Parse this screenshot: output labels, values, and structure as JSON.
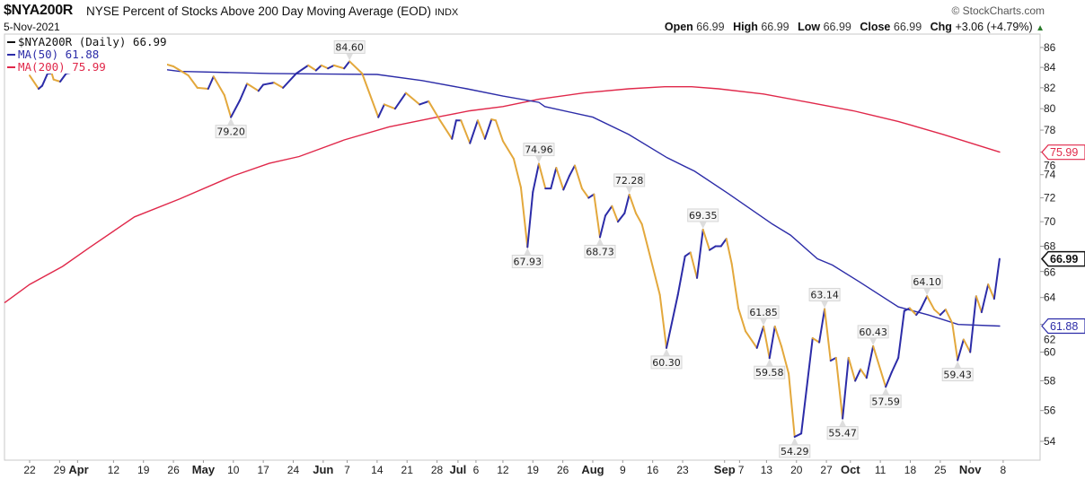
{
  "header": {
    "symbol": "$NYA200R",
    "description": "NYSE Percent of Stocks Above 200 Day Moving Average (EOD)",
    "exchange": "INDX",
    "date": "5-Nov-2021",
    "copyright": "© StockCharts.com",
    "open_label": "Open",
    "open": "66.99",
    "high_label": "High",
    "high": "66.99",
    "low_label": "Low",
    "low": "66.99",
    "close_label": "Close",
    "close": "66.99",
    "chg_label": "Chg",
    "chg": "+3.06 (+4.79%)",
    "chg_arrow": "▲"
  },
  "legend": [
    {
      "label": "$NYA200R (Daily) 66.99",
      "color": "#111111"
    },
    {
      "label": "MA(50) 61.88",
      "color": "#2c2ca8"
    },
    {
      "label": "MA(200) 75.99",
      "color": "#e0284a"
    }
  ],
  "chart_data": {
    "type": "line",
    "title": "$NYA200R NYSE Percent of Stocks Above 200 Day Moving Average (EOD)",
    "x_units": "trading days since 22-Mar-2021",
    "y_scale": "log",
    "ylim": [
      53,
      87
    ],
    "y_ticks": [
      54,
      56,
      58,
      60,
      62,
      64,
      66,
      68,
      70,
      72,
      74,
      76,
      78,
      80,
      82,
      84,
      86
    ],
    "x_ticks": [
      {
        "label": "22",
        "day": 0,
        "bold": false
      },
      {
        "label": "29",
        "day": 5,
        "bold": false
      },
      {
        "label": "Apr",
        "day": 8,
        "bold": true
      },
      {
        "label": "12",
        "day": 14,
        "bold": false
      },
      {
        "label": "19",
        "day": 19,
        "bold": false
      },
      {
        "label": "26",
        "day": 24,
        "bold": false
      },
      {
        "label": "May",
        "day": 29,
        "bold": true
      },
      {
        "label": "10",
        "day": 34,
        "bold": false
      },
      {
        "label": "17",
        "day": 39,
        "bold": false
      },
      {
        "label": "24",
        "day": 44,
        "bold": false
      },
      {
        "label": "Jun",
        "day": 49,
        "bold": true
      },
      {
        "label": "7",
        "day": 53,
        "bold": false
      },
      {
        "label": "14",
        "day": 58,
        "bold": false
      },
      {
        "label": "21",
        "day": 63,
        "bold": false
      },
      {
        "label": "28",
        "day": 68,
        "bold": false
      },
      {
        "label": "Jul",
        "day": 71.5,
        "bold": true
      },
      {
        "label": "6",
        "day": 74.5,
        "bold": false
      },
      {
        "label": "12",
        "day": 79,
        "bold": false
      },
      {
        "label": "19",
        "day": 84,
        "bold": false
      },
      {
        "label": "26",
        "day": 89,
        "bold": false
      },
      {
        "label": "Aug",
        "day": 94,
        "bold": true
      },
      {
        "label": "9",
        "day": 99,
        "bold": false
      },
      {
        "label": "16",
        "day": 104,
        "bold": false
      },
      {
        "label": "23",
        "day": 109,
        "bold": false
      },
      {
        "label": "Sep",
        "day": 116,
        "bold": true
      },
      {
        "label": "7",
        "day": 118.5,
        "bold": false
      },
      {
        "label": "13",
        "day": 123,
        "bold": false
      },
      {
        "label": "20",
        "day": 128,
        "bold": false
      },
      {
        "label": "27",
        "day": 133,
        "bold": false
      },
      {
        "label": "Oct",
        "day": 137,
        "bold": true
      },
      {
        "label": "11",
        "day": 142,
        "bold": false
      },
      {
        "label": "18",
        "day": 147,
        "bold": false
      },
      {
        "label": "25",
        "day": 152,
        "bold": false
      },
      {
        "label": "Nov",
        "day": 157,
        "bold": true
      },
      {
        "label": "8",
        "day": 162.5,
        "bold": false
      }
    ],
    "series": [
      {
        "name": "$NYA200R",
        "up_color": "#2c2ca8",
        "down_color": "#e3a83c",
        "points": [
          [
            0,
            83.2
          ],
          [
            1.5,
            81.9
          ],
          [
            2.1,
            82.2
          ],
          [
            3,
            83.4
          ],
          [
            3.7,
            83.4
          ],
          [
            4,
            82.8
          ],
          [
            5.1,
            82.6
          ],
          [
            6.1,
            83.4
          ],
          [
            8,
            83.6
          ],
          [
            10.8,
            84.4
          ],
          [
            12.7,
            83.5
          ],
          [
            15.6,
            84.6
          ],
          [
            16.5,
            84.3
          ],
          [
            18.3,
            83.7
          ],
          [
            19.5,
            84.3
          ],
          [
            20.5,
            83.8
          ],
          [
            22.3,
            84.4
          ],
          [
            24,
            84.1
          ],
          [
            26.5,
            83.2
          ],
          [
            28,
            82.0
          ],
          [
            29.8,
            81.9
          ],
          [
            30.7,
            83.1
          ],
          [
            32.5,
            81.3
          ],
          [
            33.6,
            79.2
          ],
          [
            35.1,
            80.8
          ],
          [
            36.3,
            82.4
          ],
          [
            38.2,
            81.7
          ],
          [
            39,
            82.3
          ],
          [
            40.8,
            82.5
          ],
          [
            42.3,
            82.0
          ],
          [
            44.5,
            83.4
          ],
          [
            46.5,
            84.2
          ],
          [
            47.8,
            83.7
          ],
          [
            48.7,
            84.2
          ],
          [
            49.8,
            83.9
          ],
          [
            50.8,
            84.2
          ],
          [
            52.5,
            83.9
          ],
          [
            53.4,
            84.6
          ],
          [
            55.5,
            83.4
          ],
          [
            58.2,
            79.2
          ],
          [
            59.2,
            80.4
          ],
          [
            61,
            80.0
          ],
          [
            62.8,
            81.5
          ],
          [
            65.1,
            80.4
          ],
          [
            66.6,
            80.7
          ],
          [
            68.5,
            78.9
          ],
          [
            70.5,
            77.2
          ],
          [
            71.2,
            78.9
          ],
          [
            72,
            78.9
          ],
          [
            73.5,
            76.8
          ],
          [
            74.8,
            78.9
          ],
          [
            76,
            77.2
          ],
          [
            77.1,
            79.0
          ],
          [
            77.8,
            78.9
          ],
          [
            79,
            77.0
          ],
          [
            80.8,
            75.4
          ],
          [
            82,
            72.9
          ],
          [
            83.1,
            67.93
          ],
          [
            84,
            72.5
          ],
          [
            85,
            74.96
          ],
          [
            86.1,
            72.8
          ],
          [
            87,
            72.8
          ],
          [
            87.9,
            74.6
          ],
          [
            89.1,
            72.7
          ],
          [
            90.1,
            73.9
          ],
          [
            91,
            74.8
          ],
          [
            92.2,
            72.8
          ],
          [
            93.3,
            72.0
          ],
          [
            94.2,
            72.3
          ],
          [
            95.2,
            68.73
          ],
          [
            96.1,
            70.5
          ],
          [
            97.2,
            71.3
          ],
          [
            98.2,
            70.0
          ],
          [
            99.3,
            70.7
          ],
          [
            100.1,
            72.28
          ],
          [
            101.2,
            70.7
          ],
          [
            102.2,
            69.8
          ],
          [
            103.3,
            67.7
          ],
          [
            105.2,
            64.2
          ],
          [
            106.3,
            60.3
          ],
          [
            108.2,
            64.2
          ],
          [
            109.4,
            67.2
          ],
          [
            110.3,
            67.5
          ],
          [
            111.4,
            65.5
          ],
          [
            112.4,
            69.35
          ],
          [
            113.5,
            67.7
          ],
          [
            114.5,
            68.0
          ],
          [
            115.4,
            68.0
          ],
          [
            116.3,
            68.6
          ],
          [
            117.2,
            66.6
          ],
          [
            118.3,
            63.2
          ],
          [
            119.5,
            61.5
          ],
          [
            121.4,
            60.3
          ],
          [
            122.5,
            61.85
          ],
          [
            123.5,
            59.58
          ],
          [
            124.4,
            61.85
          ],
          [
            125.5,
            60.4
          ],
          [
            126.7,
            58.5
          ],
          [
            127.7,
            54.29
          ],
          [
            128.8,
            54.5
          ],
          [
            130.7,
            61.0
          ],
          [
            131.8,
            60.7
          ],
          [
            132.7,
            63.14
          ],
          [
            133.7,
            59.4
          ],
          [
            134.6,
            59.6
          ],
          [
            135.7,
            55.47
          ],
          [
            136.7,
            59.6
          ],
          [
            137.8,
            58.0
          ],
          [
            138.7,
            58.8
          ],
          [
            139.7,
            58.2
          ],
          [
            140.8,
            60.43
          ],
          [
            142.9,
            57.59
          ],
          [
            143.9,
            58.6
          ],
          [
            145,
            59.6
          ],
          [
            146,
            63.0
          ],
          [
            146.9,
            63.2
          ],
          [
            148,
            62.7
          ],
          [
            148.7,
            63.1
          ],
          [
            149.8,
            64.1
          ],
          [
            151,
            63.1
          ],
          [
            152,
            62.7
          ],
          [
            152.9,
            63.1
          ],
          [
            154,
            62.1
          ],
          [
            154.9,
            59.43
          ],
          [
            155.9,
            60.9
          ],
          [
            157,
            60.0
          ],
          [
            158,
            64.1
          ],
          [
            158.9,
            62.9
          ],
          [
            160,
            65.0
          ],
          [
            161,
            63.9
          ],
          [
            161.9,
            66.99
          ]
        ]
      },
      {
        "name": "MA(50)",
        "color": "#2c2ca8",
        "last": "61.88",
        "points": [
          [
            9.6,
            84.8
          ],
          [
            25,
            83.6
          ],
          [
            40,
            83.4
          ],
          [
            58,
            83.3
          ],
          [
            65.5,
            82.7
          ],
          [
            73,
            81.9
          ],
          [
            79,
            81.2
          ],
          [
            85,
            80.6
          ],
          [
            86,
            80.2
          ],
          [
            94,
            79.2
          ],
          [
            100,
            77.6
          ],
          [
            106.4,
            75.5
          ],
          [
            111,
            74.3
          ],
          [
            116.5,
            72.4
          ],
          [
            124,
            69.8
          ],
          [
            127,
            68.9
          ],
          [
            131.5,
            67.0
          ],
          [
            134,
            66.5
          ],
          [
            138.5,
            65.2
          ],
          [
            145,
            63.3
          ],
          [
            150,
            62.7
          ],
          [
            155,
            62.0
          ],
          [
            162,
            61.88
          ]
        ]
      },
      {
        "name": "MA(200)",
        "color": "#e0284a",
        "last": "75.99",
        "points": [
          [
            -4.2,
            63.6
          ],
          [
            0,
            65.0
          ],
          [
            5.5,
            66.4
          ],
          [
            10,
            67.9
          ],
          [
            17.5,
            70.4
          ],
          [
            25,
            71.9
          ],
          [
            34,
            73.9
          ],
          [
            40,
            75.0
          ],
          [
            45,
            75.6
          ],
          [
            52.5,
            77.1
          ],
          [
            60,
            78.3
          ],
          [
            68,
            79.2
          ],
          [
            73.5,
            79.8
          ],
          [
            79,
            80.2
          ],
          [
            85,
            80.9
          ],
          [
            92.5,
            81.5
          ],
          [
            100,
            81.9
          ],
          [
            106,
            82.1
          ],
          [
            110.5,
            82.1
          ],
          [
            115,
            81.9
          ],
          [
            122.5,
            81.4
          ],
          [
            130,
            80.6
          ],
          [
            137.5,
            79.8
          ],
          [
            145,
            78.8
          ],
          [
            152.5,
            77.6
          ],
          [
            162,
            75.99
          ]
        ]
      }
    ],
    "annotations": [
      {
        "day": 33.6,
        "value": 79.2,
        "text": "79.20",
        "pos": "below"
      },
      {
        "day": 53.4,
        "value": 84.6,
        "text": "84.60",
        "pos": "above"
      },
      {
        "day": 83.1,
        "value": 67.93,
        "text": "67.93",
        "pos": "below"
      },
      {
        "day": 85,
        "value": 74.96,
        "text": "74.96",
        "pos": "above"
      },
      {
        "day": 95.2,
        "value": 68.73,
        "text": "68.73",
        "pos": "below"
      },
      {
        "day": 100.1,
        "value": 72.28,
        "text": "72.28",
        "pos": "above"
      },
      {
        "day": 106.3,
        "value": 60.3,
        "text": "60.30",
        "pos": "below"
      },
      {
        "day": 112.4,
        "value": 69.35,
        "text": "69.35",
        "pos": "above"
      },
      {
        "day": 122.5,
        "value": 61.85,
        "text": "61.85",
        "pos": "above"
      },
      {
        "day": 123.5,
        "value": 59.58,
        "text": "59.58",
        "pos": "below"
      },
      {
        "day": 127.7,
        "value": 54.29,
        "text": "54.29",
        "pos": "below"
      },
      {
        "day": 132.7,
        "value": 63.14,
        "text": "63.14",
        "pos": "above"
      },
      {
        "day": 135.7,
        "value": 55.47,
        "text": "55.47",
        "pos": "below"
      },
      {
        "day": 140.8,
        "value": 60.43,
        "text": "60.43",
        "pos": "above"
      },
      {
        "day": 142.9,
        "value": 57.59,
        "text": "57.59",
        "pos": "below"
      },
      {
        "day": 149.8,
        "value": 64.1,
        "text": "64.10",
        "pos": "above"
      },
      {
        "day": 154.9,
        "value": 59.43,
        "text": "59.43",
        "pos": "below"
      }
    ],
    "price_tags": [
      {
        "value": 75.99,
        "text": "75.99",
        "color": "#e0284a",
        "bold": false
      },
      {
        "value": 66.99,
        "text": "66.99",
        "color": "#111111",
        "bold": true
      },
      {
        "value": 61.88,
        "text": "61.88",
        "color": "#2c2ca8",
        "bold": false
      }
    ]
  }
}
